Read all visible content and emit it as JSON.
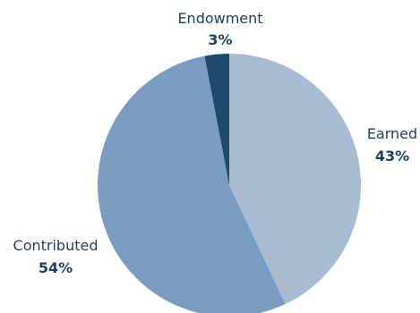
{
  "chart_data": {
    "type": "pie",
    "title": "",
    "start_angle_deg": 0,
    "direction": "clockwise",
    "slices": [
      {
        "label": "Earned",
        "value": 43,
        "value_label": "43%",
        "color": "#a9bbd3",
        "label_position": "right"
      },
      {
        "label": "Contributed",
        "value": 54,
        "value_label": "54%",
        "color": "#7a9cc0",
        "label_position": "left"
      },
      {
        "label": "Endowment",
        "value": 3,
        "value_label": "3%",
        "color": "#1f4a6e",
        "label_position": "top"
      }
    ],
    "legend": "none"
  }
}
